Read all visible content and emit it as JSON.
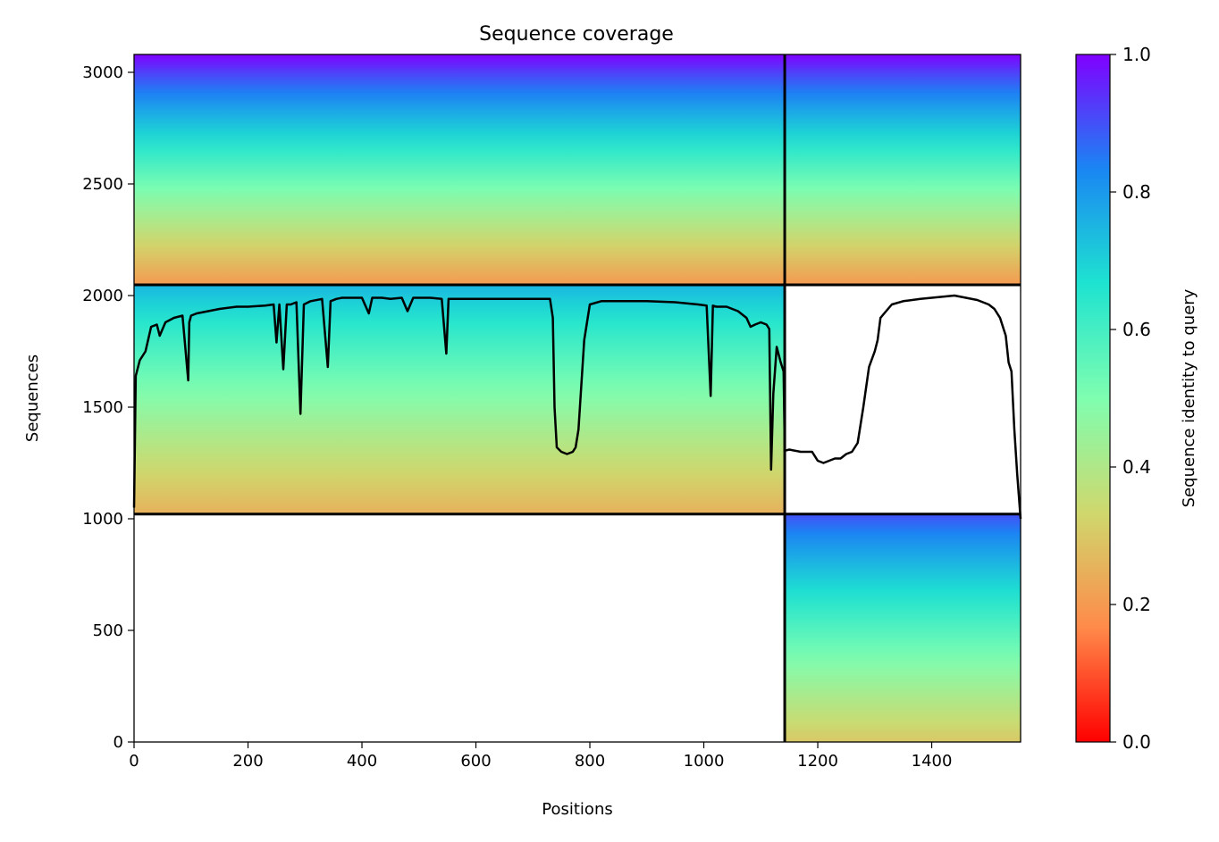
{
  "chart_data": {
    "type": "heatmap",
    "title": "Sequence coverage",
    "xlabel": "Positions",
    "ylabel": "Sequences",
    "xlim": [
      0,
      1556
    ],
    "ylim": [
      0,
      3080
    ],
    "x_ticks": [
      0,
      200,
      400,
      600,
      800,
      1000,
      1200,
      1400
    ],
    "y_ticks": [
      0,
      500,
      1000,
      1500,
      2000,
      2500,
      3000
    ],
    "grid": false,
    "colorbar": {
      "label": "Sequence identity to query",
      "range": [
        0.0,
        1.0
      ],
      "ticks": [
        "0.0",
        "0.2",
        "0.4",
        "0.6",
        "0.8",
        "1.0"
      ],
      "colors": [
        "#ff0000",
        "#ff8a4a",
        "#cfd86d",
        "#7ffeb0",
        "#1ee3d0",
        "#1a86f3",
        "#8000ff"
      ]
    },
    "chain_boundaries": {
      "x": 1142,
      "y": [
        1021,
        2048
      ]
    },
    "blocks": [
      {
        "name": "paired",
        "x": [
          0,
          1556
        ],
        "y": [
          2048,
          3080
        ],
        "identity_top": 1.0,
        "identity_bottom": 0.2
      },
      {
        "name": "chain A only",
        "x": [
          0,
          1142
        ],
        "y": [
          1021,
          2048
        ],
        "identity_top": 0.75,
        "identity_bottom": 0.25
      },
      {
        "name": "chain B only",
        "x": [
          1142,
          1556
        ],
        "y": [
          0,
          1021
        ],
        "identity_top": 0.9,
        "identity_bottom": 0.3
      }
    ],
    "coverage_line": {
      "color": "#000000",
      "x": [
        0,
        3,
        10,
        20,
        30,
        40,
        45,
        55,
        70,
        85,
        95,
        97,
        100,
        110,
        130,
        150,
        180,
        200,
        230,
        245,
        250,
        255,
        262,
        268,
        275,
        285,
        292,
        298,
        310,
        330,
        340,
        345,
        355,
        365,
        380,
        400,
        412,
        418,
        425,
        435,
        450,
        470,
        480,
        490,
        520,
        540,
        548,
        552,
        558,
        570,
        590,
        620,
        660,
        700,
        730,
        735,
        738,
        742,
        750,
        760,
        770,
        775,
        780,
        790,
        800,
        820,
        850,
        870,
        900,
        950,
        990,
        1005,
        1012,
        1016,
        1022,
        1040,
        1060,
        1075,
        1082,
        1090,
        1100,
        1110,
        1115,
        1118,
        1122,
        1128,
        1135,
        1140,
        1142,
        1150,
        1170,
        1190,
        1200,
        1210,
        1220,
        1230,
        1240,
        1250,
        1260,
        1270,
        1280,
        1290,
        1300,
        1305,
        1310,
        1320,
        1330,
        1350,
        1380,
        1400,
        1420,
        1440,
        1460,
        1480,
        1500,
        1510,
        1520,
        1530,
        1535,
        1540,
        1545,
        1550,
        1553,
        1556
      ],
      "y": [
        1050,
        1640,
        1710,
        1750,
        1860,
        1870,
        1820,
        1880,
        1900,
        1910,
        1620,
        1880,
        1910,
        1920,
        1930,
        1940,
        1950,
        1950,
        1955,
        1960,
        1790,
        1960,
        1670,
        1960,
        1960,
        1970,
        1470,
        1960,
        1975,
        1985,
        1680,
        1975,
        1985,
        1990,
        1990,
        1990,
        1920,
        1990,
        1990,
        1990,
        1985,
        1990,
        1930,
        1990,
        1990,
        1985,
        1740,
        1985,
        1985,
        1985,
        1985,
        1985,
        1985,
        1985,
        1985,
        1900,
        1500,
        1320,
        1300,
        1290,
        1300,
        1320,
        1400,
        1800,
        1960,
        1975,
        1975,
        1975,
        1975,
        1970,
        1960,
        1955,
        1550,
        1955,
        1950,
        1950,
        1930,
        1900,
        1860,
        1870,
        1880,
        1870,
        1850,
        1220,
        1560,
        1770,
        1700,
        1660,
        1305,
        1310,
        1300,
        1300,
        1260,
        1250,
        1260,
        1270,
        1270,
        1290,
        1300,
        1340,
        1500,
        1680,
        1750,
        1800,
        1900,
        1930,
        1960,
        1975,
        1985,
        1990,
        1995,
        2000,
        1990,
        1980,
        1960,
        1940,
        1900,
        1820,
        1700,
        1660,
        1400,
        1200,
        1100,
        1000
      ]
    }
  }
}
